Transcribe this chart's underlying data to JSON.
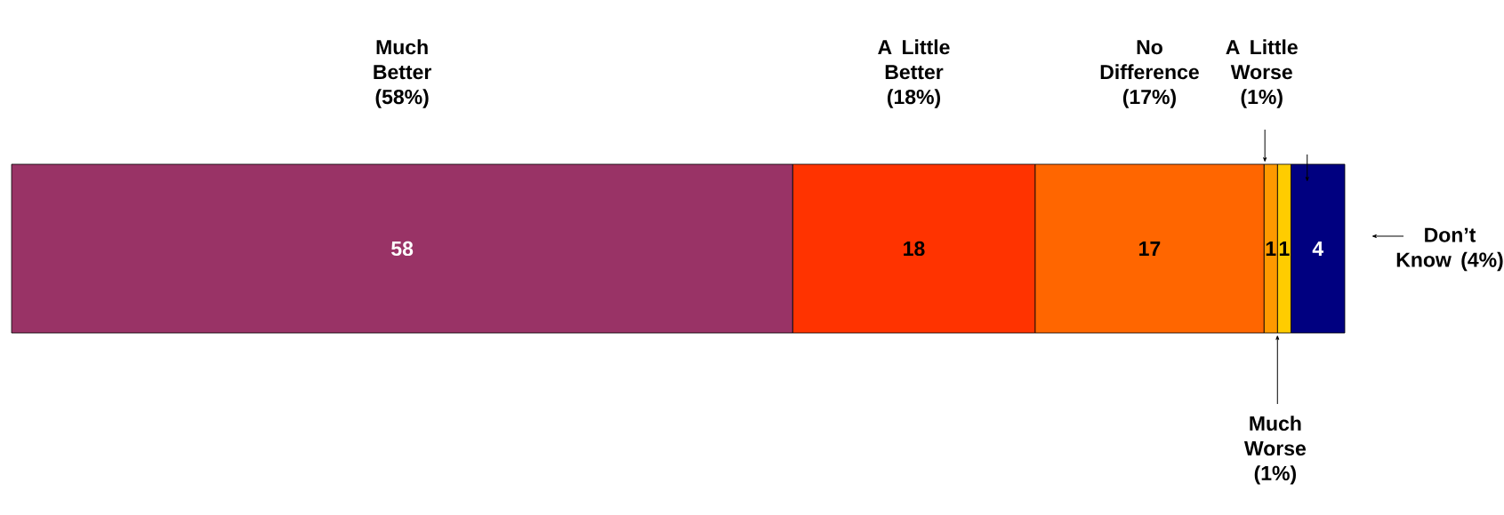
{
  "chart_data": {
    "type": "bar",
    "orientation": "horizontal",
    "stacked": true,
    "data_labels": true,
    "categories": [
      null
    ],
    "series": [
      {
        "name": "Much Better (58%)",
        "color": "#993366",
        "values": [
          58
        ]
      },
      {
        "name": "A Little Better (18%)",
        "color": "#ff3300",
        "values": [
          18
        ]
      },
      {
        "name": "No Difference (17%)",
        "color": "#ff6600",
        "values": [
          17
        ]
      },
      {
        "name": "A Little Worse (1%)",
        "color": "#ff9900",
        "values": [
          1
        ]
      },
      {
        "name": "Much Worse (1%)",
        "color": "#ffcc00",
        "values": [
          1
        ]
      },
      {
        "name": "Don’t Know (4%)",
        "color": "#000080",
        "values": [
          4
        ]
      }
    ]
  }
}
